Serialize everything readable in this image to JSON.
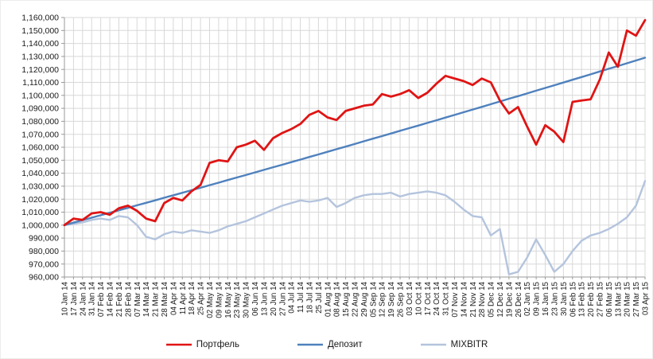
{
  "chart_data": {
    "type": "line",
    "title": "",
    "xlabel": "",
    "ylabel": "",
    "ylim": [
      960000,
      1160000
    ],
    "y_tick_step": 10000,
    "grid": "both",
    "legend_position": "bottom",
    "y_ticks": [
      "1,160,000",
      "1,150,000",
      "1,140,000",
      "1,130,000",
      "1,120,000",
      "1,110,000",
      "1,100,000",
      "1,090,000",
      "1,080,000",
      "1,070,000",
      "1,060,000",
      "1,050,000",
      "1,040,000",
      "1,030,000",
      "1,020,000",
      "1,010,000",
      "1,000,000",
      "990,000",
      "980,000",
      "970,000",
      "960,000"
    ],
    "x": [
      "10 Jan 14",
      "17 Jan 14",
      "24 Jan 14",
      "31 Jan 14",
      "07 Feb 14",
      "14 Feb 14",
      "21 Feb 14",
      "28 Feb 14",
      "07 Mar 14",
      "14 Mar 14",
      "21 Mar 14",
      "28 Mar 14",
      "04 Apr 14",
      "11 Apr 14",
      "18 Apr 14",
      "25 Apr 14",
      "02 May 14",
      "09 May 14",
      "16 May 14",
      "23 May 14",
      "30 May 14",
      "06 Jun 14",
      "13 Jun 14",
      "20 Jun 14",
      "27 Jun 14",
      "04 Jul 14",
      "11 Jul 14",
      "18 Jul 14",
      "25 Jul 14",
      "01 Aug 14",
      "08 Aug 14",
      "15 Aug 14",
      "22 Aug 14",
      "29 Aug 14",
      "05 Sep 14",
      "12 Sep 14",
      "19 Sep 14",
      "26 Sep 14",
      "03 Oct 14",
      "10 Oct 14",
      "17 Oct 14",
      "24 Oct 14",
      "31 Oct 14",
      "07 Nov 14",
      "14 Nov 14",
      "21 Nov 14",
      "28 Nov 14",
      "05 Dec 14",
      "12 Dec 14",
      "19 Dec 14",
      "26 Dec 14",
      "02 Jan 15",
      "09 Jan 15",
      "16 Jan 15",
      "23 Jan 15",
      "30 Jan 15",
      "06 Feb 15",
      "13 Feb 15",
      "20 Feb 15",
      "27 Feb 15",
      "06 Mar 15",
      "13 Mar 15",
      "20 Mar 15",
      "27 Mar 15",
      "03 Apr 15"
    ],
    "series": [
      {
        "name": "Портфель",
        "key": "portfolio",
        "color": "#e01414",
        "width": 2.8,
        "values": [
          1000000,
          1005000,
          1004000,
          1009000,
          1010000,
          1008000,
          1013000,
          1015000,
          1011000,
          1005000,
          1003000,
          1017000,
          1021000,
          1019000,
          1026000,
          1031000,
          1048000,
          1050000,
          1049000,
          1060000,
          1062000,
          1065000,
          1058000,
          1067000,
          1071000,
          1074000,
          1078000,
          1085000,
          1088000,
          1083000,
          1081000,
          1088000,
          1090000,
          1092000,
          1093000,
          1101000,
          1099000,
          1101000,
          1104000,
          1098000,
          1102000,
          1109000,
          1115000,
          1113000,
          1111000,
          1108000,
          1113000,
          1110000,
          1096000,
          1086000,
          1091000,
          1076000,
          1062000,
          1077000,
          1072000,
          1064000,
          1095000,
          1096000,
          1097000,
          1112000,
          1133000,
          1122000,
          1150000,
          1146000,
          1158000
        ]
      },
      {
        "name": "Депозит",
        "key": "deposit",
        "color": "#4f81bd",
        "width": 2.4,
        "values": [
          1000000,
          1001900,
          1003800,
          1005700,
          1007600,
          1009500,
          1011400,
          1013300,
          1015300,
          1017200,
          1019100,
          1021100,
          1023000,
          1024900,
          1026900,
          1028800,
          1030800,
          1032700,
          1034700,
          1036700,
          1038600,
          1040600,
          1042600,
          1044600,
          1046500,
          1048500,
          1050500,
          1052500,
          1054500,
          1056500,
          1058500,
          1060500,
          1062500,
          1064600,
          1066600,
          1068600,
          1070600,
          1072700,
          1074700,
          1076700,
          1078800,
          1080800,
          1082900,
          1084900,
          1087000,
          1089100,
          1091100,
          1093200,
          1095300,
          1097400,
          1099400,
          1101500,
          1103600,
          1105700,
          1107800,
          1109900,
          1112000,
          1114100,
          1116200,
          1118400,
          1120500,
          1122600,
          1124700,
          1126900,
          1129000
        ]
      },
      {
        "name": "MIXBITR",
        "key": "mixbitr",
        "color": "#b4c4dd",
        "width": 2.4,
        "values": [
          1000000,
          1001000,
          1002000,
          1004000,
          1005000,
          1004000,
          1007000,
          1006000,
          1000000,
          991000,
          989000,
          993000,
          995000,
          994000,
          996000,
          995000,
          994000,
          996000,
          999000,
          1001000,
          1003000,
          1006000,
          1009000,
          1012000,
          1015000,
          1017000,
          1019000,
          1018000,
          1019000,
          1021000,
          1014000,
          1017000,
          1021000,
          1023000,
          1024000,
          1024000,
          1025000,
          1022000,
          1024000,
          1025000,
          1026000,
          1025000,
          1023000,
          1018000,
          1012000,
          1007000,
          1006000,
          992000,
          997000,
          962000,
          964000,
          975000,
          989000,
          977000,
          964000,
          970000,
          980000,
          988000,
          992000,
          994000,
          997000,
          1001000,
          1006000,
          1015000,
          1034000
        ]
      }
    ],
    "colors": {
      "gridline": "#d8d8d8",
      "axis": "#9a9a9a",
      "tick_text": "#1a1a1a"
    }
  }
}
